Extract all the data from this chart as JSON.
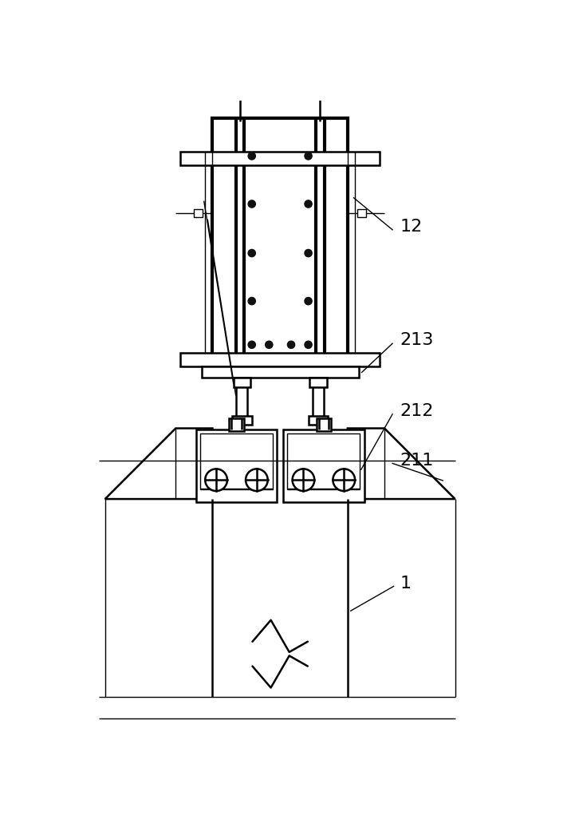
{
  "bg_color": "#ffffff",
  "line_color": "#000000",
  "lw_thin": 1.0,
  "lw_med": 1.8,
  "lw_thick": 3.0,
  "dot_color": "#111111",
  "label_12": "12",
  "label_213": "213",
  "label_212": "212",
  "label_211": "211",
  "label_1": "1",
  "label_fontsize": 16
}
